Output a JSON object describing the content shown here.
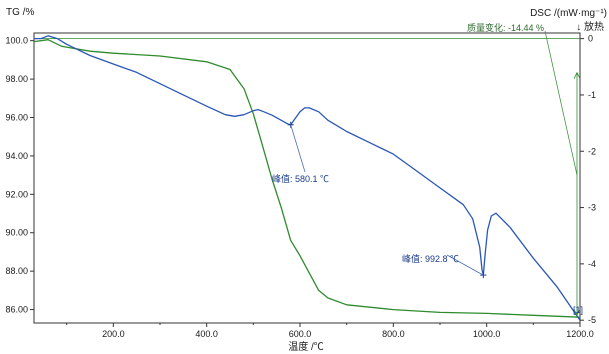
{
  "chart_data": {
    "type": "line",
    "title": "",
    "xlabel": "温度 /℃",
    "ylabel_left": "TG /%",
    "ylabel_right": "DSC /(mW·mg⁻¹)",
    "exo_label": "↓ 放热",
    "xlim": [
      30,
      1200
    ],
    "ylim_left": [
      85.3,
      100.4
    ],
    "ylim_right": [
      -5.05,
      0.1
    ],
    "x_ticks": [
      "200.0",
      "400.0",
      "600.0",
      "800.0",
      "1000.0",
      "1200.0"
    ],
    "y_left_ticks": [
      "100.0",
      "98.00",
      "96.00",
      "94.00",
      "92.00",
      "90.00",
      "88.00",
      "86.00"
    ],
    "y_right_ticks": [
      "0",
      "-1",
      "-2",
      "-3",
      "-4",
      "-5"
    ],
    "grid": false,
    "colors": {
      "tg": "#2e8b2e",
      "dsc": "#2a57b5",
      "axis": "#333333",
      "annotation_text": "#1a3a8a"
    },
    "series": [
      {
        "axis": "left",
        "x": [
          30,
          60,
          90,
          150,
          200,
          300,
          400,
          450,
          480,
          500,
          520,
          540,
          560,
          580,
          600,
          620,
          640,
          660,
          700,
          800,
          900,
          1000,
          1100,
          1200
        ],
        "values": [
          99.95,
          100.05,
          99.7,
          99.45,
          99.35,
          99.2,
          98.9,
          98.5,
          97.5,
          96.2,
          94.5,
          92.8,
          91.3,
          89.6,
          88.8,
          87.9,
          87.0,
          86.6,
          86.25,
          86.0,
          85.85,
          85.8,
          85.7,
          85.6
        ]
      },
      {
        "axis": "right",
        "x": [
          30,
          45,
          60,
          80,
          100,
          150,
          200,
          250,
          300,
          350,
          400,
          440,
          460,
          480,
          500,
          510,
          520,
          540,
          560,
          575,
          580,
          600,
          610,
          620,
          640,
          660,
          700,
          750,
          800,
          850,
          900,
          950,
          970,
          985,
          990,
          992.8,
          997,
          1002,
          1010,
          1020,
          1050,
          1100,
          1150,
          1200
        ],
        "values": [
          0.0,
          0.0,
          0.05,
          0.0,
          -0.1,
          -0.3,
          -0.45,
          -0.6,
          -0.8,
          -1.0,
          -1.2,
          -1.35,
          -1.38,
          -1.35,
          -1.28,
          -1.26,
          -1.29,
          -1.36,
          -1.45,
          -1.52,
          -1.53,
          -1.3,
          -1.23,
          -1.23,
          -1.3,
          -1.45,
          -1.65,
          -1.85,
          -2.05,
          -2.35,
          -2.65,
          -2.95,
          -3.2,
          -3.7,
          -4.1,
          -4.2,
          -3.8,
          -3.4,
          -3.15,
          -3.1,
          -3.35,
          -3.9,
          -4.4,
          -5.0
        ]
      }
    ],
    "reference_line": {
      "axis": "right",
      "value": 0
    },
    "annotations": [
      {
        "text": "峰值: 580.1 ℃",
        "x": 580.1,
        "y": -1.53,
        "axis": "right"
      },
      {
        "text": "峰值: 992.8 ℃",
        "x": 992.8,
        "y": -4.2,
        "axis": "right"
      },
      {
        "text": "质量变化: -14.44 %",
        "axis": "left"
      }
    ],
    "marker_label": "[1]"
  }
}
